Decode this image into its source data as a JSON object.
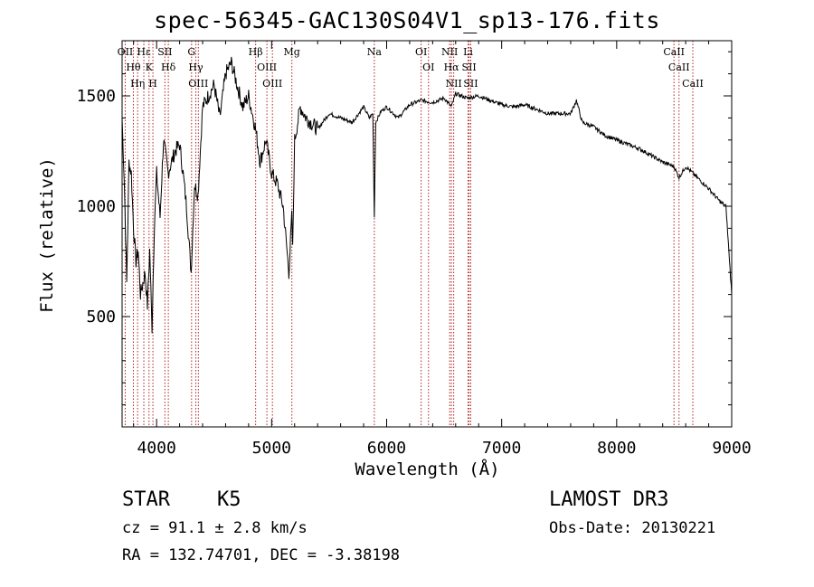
{
  "chart_data": {
    "type": "line",
    "title": "spec-56345-GAC130S04V1_sp13-176.fits",
    "xlabel": "Wavelength (Å)",
    "ylabel": "Flux (relative)",
    "xlim": [
      3700,
      9000
    ],
    "ylim": [
      0,
      1750
    ],
    "xticks": [
      4000,
      5000,
      6000,
      7000,
      8000,
      9000
    ],
    "yticks": [
      500,
      1000,
      1500
    ],
    "series": [
      {
        "name": "flux",
        "x": [
          3700,
          3720,
          3740,
          3760,
          3780,
          3800,
          3820,
          3840,
          3860,
          3880,
          3900,
          3920,
          3940,
          3960,
          3980,
          4000,
          4030,
          4060,
          4100,
          4130,
          4160,
          4200,
          4230,
          4260,
          4300,
          4330,
          4360,
          4400,
          4450,
          4500,
          4550,
          4600,
          4650,
          4700,
          4750,
          4800,
          4861,
          4900,
          4950,
          5000,
          5050,
          5100,
          5150,
          5175,
          5183,
          5200,
          5250,
          5300,
          5400,
          5500,
          5600,
          5700,
          5800,
          5850,
          5880,
          5893,
          5905,
          5950,
          6000,
          6100,
          6200,
          6300,
          6400,
          6500,
          6563,
          6600,
          6700,
          6800,
          6900,
          7000,
          7100,
          7200,
          7300,
          7400,
          7500,
          7600,
          7650,
          7700,
          7800,
          7900,
          8000,
          8100,
          8200,
          8300,
          8400,
          8498,
          8542,
          8600,
          8662,
          8700,
          8800,
          8850,
          8900,
          8950,
          9000
        ],
        "values": [
          1400,
          1100,
          650,
          1200,
          1150,
          900,
          750,
          800,
          600,
          650,
          700,
          550,
          800,
          450,
          900,
          1150,
          950,
          1300,
          1150,
          1200,
          1250,
          1280,
          1150,
          1000,
          700,
          1100,
          1050,
          1450,
          1500,
          1550,
          1400,
          1600,
          1650,
          1550,
          1450,
          1500,
          1350,
          1200,
          1300,
          1150,
          1100,
          1000,
          700,
          950,
          800,
          1300,
          1450,
          1400,
          1350,
          1420,
          1400,
          1380,
          1450,
          1400,
          1420,
          950,
          1380,
          1430,
          1450,
          1400,
          1460,
          1480,
          1470,
          1490,
          1450,
          1510,
          1490,
          1500,
          1480,
          1460,
          1450,
          1460,
          1440,
          1420,
          1420,
          1420,
          1480,
          1380,
          1360,
          1320,
          1300,
          1280,
          1260,
          1230,
          1200,
          1180,
          1130,
          1180,
          1150,
          1130,
          1080,
          1050,
          1020,
          1000,
          600
        ]
      }
    ],
    "lines": [
      {
        "name": "OII",
        "x": 3727
      },
      {
        "name": "Hθ",
        "x": 3798
      },
      {
        "name": "Hη",
        "x": 3835
      },
      {
        "name": "Hε",
        "x": 3889
      },
      {
        "name": "K",
        "x": 3934
      },
      {
        "name": "H",
        "x": 3968
      },
      {
        "name": "SII",
        "x": 4072
      },
      {
        "name": "Hδ",
        "x": 4102
      },
      {
        "name": "G",
        "x": 4304
      },
      {
        "name": "Hγ",
        "x": 4341
      },
      {
        "name": "OIII",
        "x": 4363
      },
      {
        "name": "Hβ",
        "x": 4861
      },
      {
        "name": "OIII",
        "x": 4959
      },
      {
        "name": "OIII",
        "x": 5007
      },
      {
        "name": "Mg",
        "x": 5176
      },
      {
        "name": "Na",
        "x": 5893
      },
      {
        "name": "OI",
        "x": 6300
      },
      {
        "name": "OI",
        "x": 6364
      },
      {
        "name": "NII",
        "x": 6548
      },
      {
        "name": "Hα",
        "x": 6563
      },
      {
        "name": "NII",
        "x": 6583
      },
      {
        "name": "Li",
        "x": 6708
      },
      {
        "name": "SII",
        "x": 6717
      },
      {
        "name": "SII",
        "x": 6731
      },
      {
        "name": "CaII",
        "x": 8498
      },
      {
        "name": "CaII",
        "x": 8542
      },
      {
        "name": "CaII",
        "x": 8662
      }
    ]
  },
  "info": {
    "object_class": "STAR",
    "subclass": "K5",
    "survey": "LAMOST DR3",
    "cz": "cz = 91.1 ± 2.8 km/s",
    "obs_date": "Obs-Date: 20130221",
    "coords": "RA = 132.74701, DEC =  -3.38198"
  },
  "colors": {
    "line": "#b22222",
    "spectrum": "#000000",
    "axes": "#000000"
  }
}
